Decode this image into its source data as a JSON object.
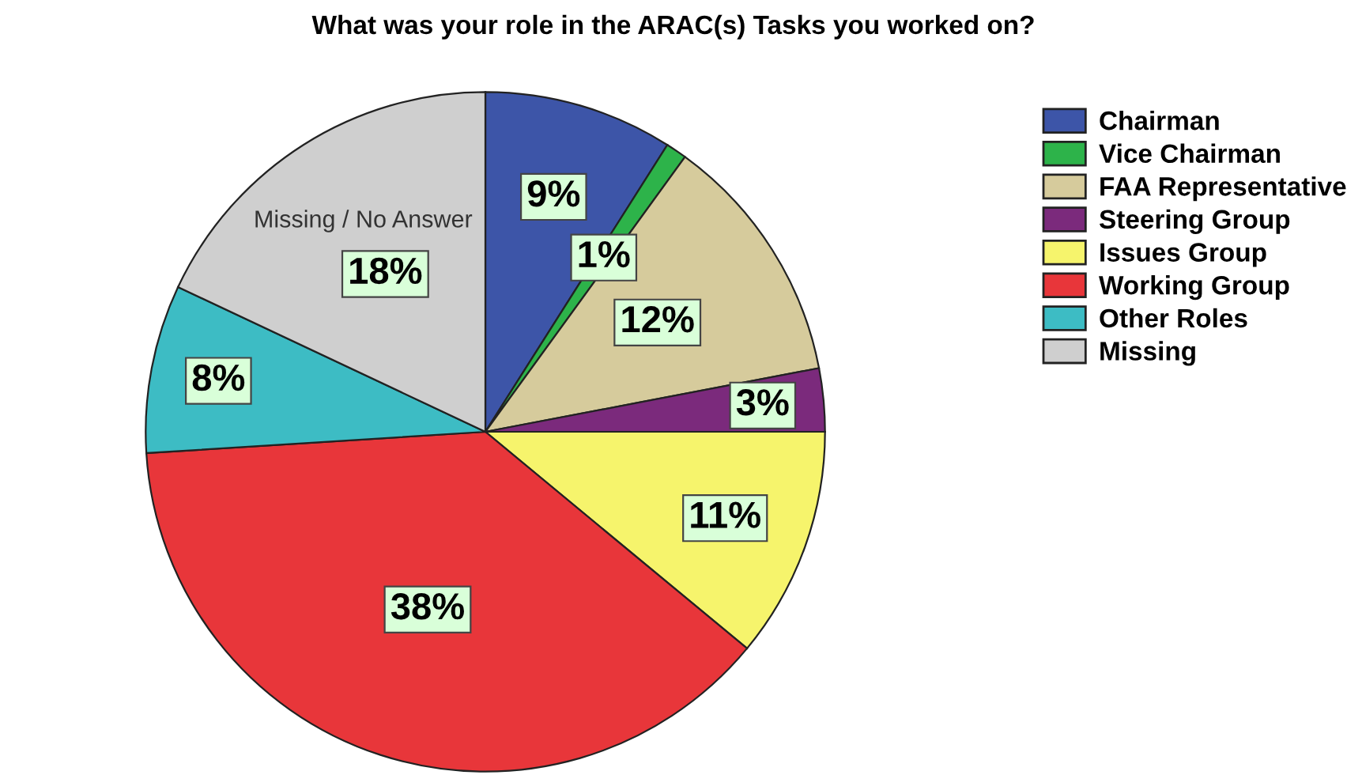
{
  "chart_data": {
    "type": "pie",
    "title": "What was your role in the ARAC(s) Tasks you worked on?",
    "categories": [
      "Chairman",
      "Vice Chairman",
      "FAA Representative",
      "Steering Group",
      "Issues Group",
      "Working Group",
      "Other Roles",
      "Missing"
    ],
    "values": [
      9,
      1,
      12,
      3,
      11,
      38,
      8,
      18
    ],
    "colors": [
      "#3d55a8",
      "#2db34a",
      "#d6cb9c",
      "#7b2a7c",
      "#f6f46c",
      "#e8363a",
      "#3dbcc4",
      "#cfcfcf"
    ],
    "value_labels": [
      "9%",
      "1%",
      "12%",
      "3%",
      "11%",
      "38%",
      "8%",
      "18%"
    ],
    "annotations": [
      "Missing / No Answer"
    ],
    "legend": "top right"
  }
}
